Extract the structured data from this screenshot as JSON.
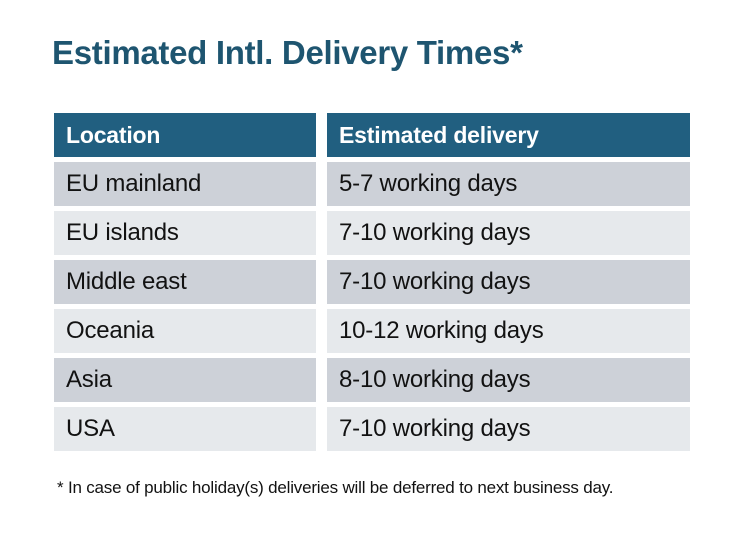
{
  "title": "Estimated Intl. Delivery Times*",
  "colors": {
    "title_color": "#1E5570",
    "header_bg": "#215F80",
    "header_text": "#FFFFFF",
    "row_dark": "#CDD1D8",
    "row_light": "#E6E9EC",
    "body_text": "#121212"
  },
  "table": {
    "columns": [
      "Location",
      "Estimated delivery"
    ],
    "rows": [
      {
        "location": "EU mainland",
        "delivery": "5-7 working days"
      },
      {
        "location": "EU islands",
        "delivery": "7-10 working days"
      },
      {
        "location": "Middle east",
        "delivery": "7-10 working days"
      },
      {
        "location": "Oceania",
        "delivery": "10-12 working days"
      },
      {
        "location": "Asia",
        "delivery": "8-10 working days"
      },
      {
        "location": "USA",
        "delivery": "7-10 working days"
      }
    ]
  },
  "footnote": "* In case of public holiday(s) deliveries will be deferred to next business day."
}
